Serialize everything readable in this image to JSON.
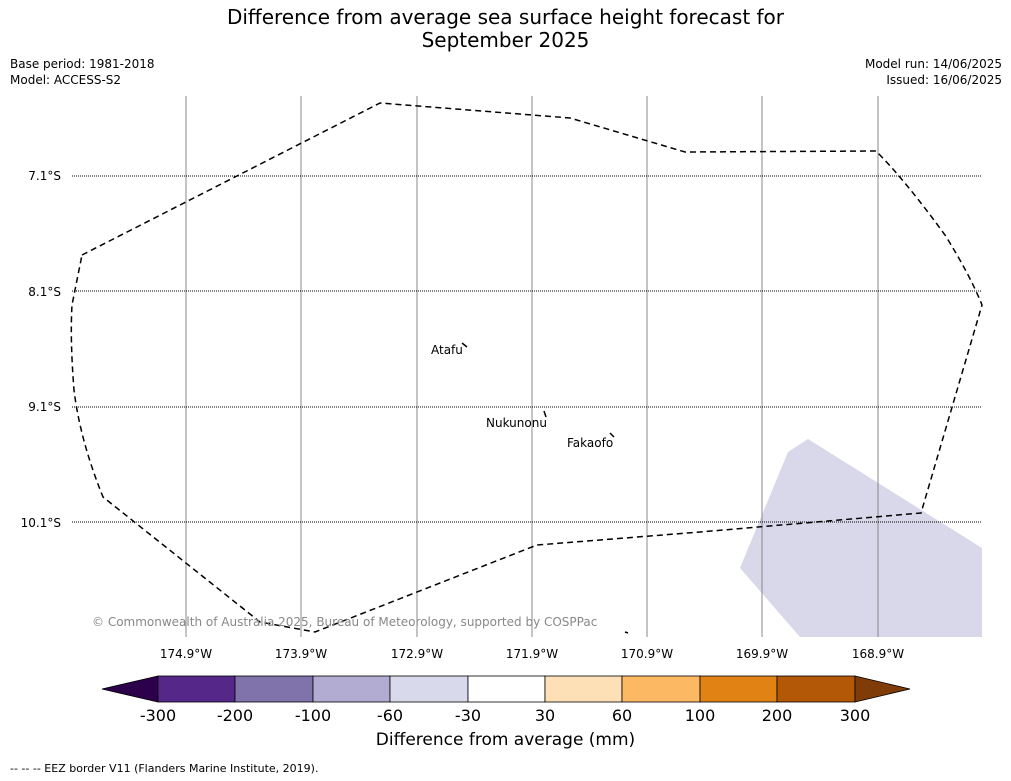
{
  "header": {
    "title_line1": "Difference from average sea surface height forecast for",
    "title_line2": "September 2025",
    "base_period": "Base period: 1981-2018",
    "model": "Model: ACCESS-S2",
    "model_run": "Model run: 14/06/2025",
    "issued": "Issued: 16/06/2025"
  },
  "map": {
    "lat_labels": [
      "7.1°S",
      "8.1°S",
      "9.1°S",
      "10.1°S"
    ],
    "lon_labels": [
      "174.9°W",
      "173.9°W",
      "172.9°W",
      "171.9°W",
      "170.9°W",
      "169.9°W",
      "168.9°W"
    ],
    "places": [
      "Atafu",
      "Nukunonu",
      "Fakaofo"
    ],
    "copyright": "© Commonwealth of Australia 2025, Bureau of Meteorology, supported by COSPPac",
    "anomaly_fill_color": "#d8d8ea",
    "anomaly_category": "-60 to -30"
  },
  "colorbar": {
    "label": "Difference from average (mm)",
    "ticks": [
      "-300",
      "-200",
      "-100",
      "-60",
      "-30",
      "30",
      "60",
      "100",
      "200",
      "300"
    ],
    "colors": [
      "#2d004b",
      "#542788",
      "#8073ac",
      "#b2abd2",
      "#d8daeb",
      "#ffffff",
      "#fee0b6",
      "#fdb863",
      "#e08214",
      "#b35806",
      "#7f3b08"
    ]
  },
  "footer": {
    "legend_text": "--  --  -- EEZ border V11 (Flanders Marine Institute, 2019)."
  }
}
